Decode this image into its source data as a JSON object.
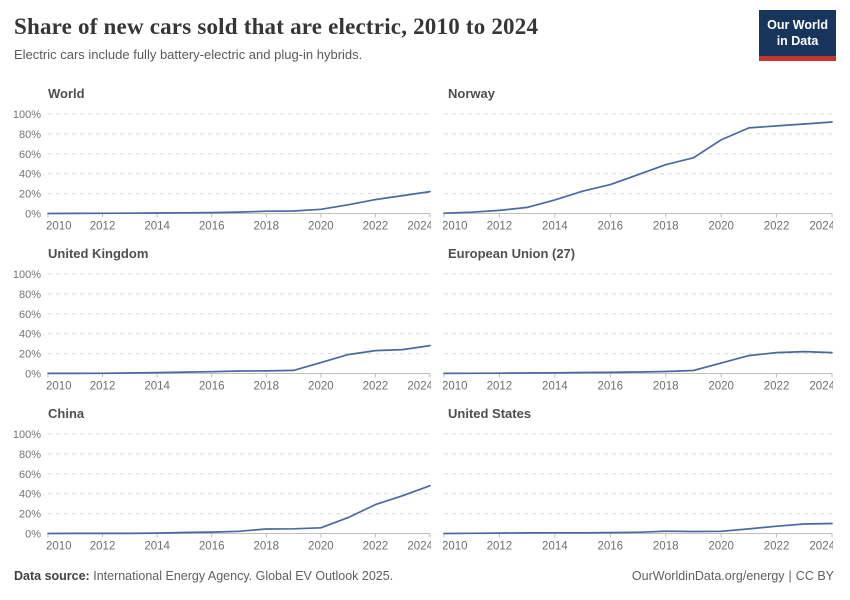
{
  "header": {
    "title": "Share of new cars sold that are electric, 2010 to 2024",
    "subtitle": "Electric cars include fully battery-electric and plug-in hybrids.",
    "logo": {
      "line1": "Our World",
      "line2": "in Data"
    }
  },
  "colors": {
    "line": "#4a699f",
    "grid": "#dcdcdc",
    "axis": "#bfbfbf",
    "logo_bg": "#18365d",
    "logo_accent": "#bf3730"
  },
  "chart_data": [
    {
      "type": "line",
      "title": "World",
      "x": [
        2010,
        2011,
        2012,
        2013,
        2014,
        2015,
        2016,
        2017,
        2018,
        2019,
        2020,
        2021,
        2022,
        2023,
        2024
      ],
      "values": [
        0.01,
        0.1,
        0.2,
        0.3,
        0.5,
        0.7,
        0.9,
        1.4,
        2.3,
        2.5,
        4.2,
        8.7,
        14,
        18,
        22
      ],
      "ylim": [
        0,
        100
      ],
      "yticks": [
        0,
        20,
        40,
        60,
        80,
        100
      ],
      "xticks": [
        2010,
        2012,
        2014,
        2016,
        2018,
        2020,
        2022,
        2024
      ],
      "show_y_labels": true,
      "grid": "dashed",
      "xlabel": "",
      "ylabel": ""
    },
    {
      "type": "line",
      "title": "Norway",
      "x": [
        2010,
        2011,
        2012,
        2013,
        2014,
        2015,
        2016,
        2017,
        2018,
        2019,
        2020,
        2021,
        2022,
        2023,
        2024
      ],
      "values": [
        0.3,
        1.3,
        3.1,
        6.1,
        13.7,
        22.4,
        29,
        39,
        49,
        56,
        74,
        86,
        88,
        90,
        92
      ],
      "ylim": [
        0,
        100
      ],
      "yticks": [
        0,
        20,
        40,
        60,
        80,
        100
      ],
      "xticks": [
        2010,
        2012,
        2014,
        2016,
        2018,
        2020,
        2022,
        2024
      ],
      "show_y_labels": false,
      "grid": "dashed",
      "xlabel": "",
      "ylabel": ""
    },
    {
      "type": "line",
      "title": "United Kingdom",
      "x": [
        2010,
        2011,
        2012,
        2013,
        2014,
        2015,
        2016,
        2017,
        2018,
        2019,
        2020,
        2021,
        2022,
        2023,
        2024
      ],
      "values": [
        0.1,
        0.1,
        0.2,
        0.5,
        0.9,
        1.4,
        1.8,
        2.5,
        2.6,
        3.1,
        11,
        19,
        23,
        24,
        28
      ],
      "ylim": [
        0,
        100
      ],
      "yticks": [
        0,
        20,
        40,
        60,
        80,
        100
      ],
      "xticks": [
        2010,
        2012,
        2014,
        2016,
        2018,
        2020,
        2022,
        2024
      ],
      "show_y_labels": true,
      "grid": "dashed",
      "xlabel": "",
      "ylabel": ""
    },
    {
      "type": "line",
      "title": "European Union (27)",
      "x": [
        2010,
        2011,
        2012,
        2013,
        2014,
        2015,
        2016,
        2017,
        2018,
        2019,
        2020,
        2021,
        2022,
        2023,
        2024
      ],
      "values": [
        0.1,
        0.2,
        0.3,
        0.5,
        0.6,
        1.0,
        1.1,
        1.5,
        2.0,
        3.0,
        10.5,
        18,
        21,
        22,
        21
      ],
      "ylim": [
        0,
        100
      ],
      "yticks": [
        0,
        20,
        40,
        60,
        80,
        100
      ],
      "xticks": [
        2010,
        2012,
        2014,
        2016,
        2018,
        2020,
        2022,
        2024
      ],
      "show_y_labels": false,
      "grid": "dashed",
      "xlabel": "",
      "ylabel": ""
    },
    {
      "type": "line",
      "title": "China",
      "x": [
        2010,
        2011,
        2012,
        2013,
        2014,
        2015,
        2016,
        2017,
        2018,
        2019,
        2020,
        2021,
        2022,
        2023,
        2024
      ],
      "values": [
        0.0,
        0.1,
        0.1,
        0.1,
        0.4,
        1.0,
        1.4,
        2.2,
        4.5,
        4.7,
        5.7,
        16,
        29,
        38,
        48
      ],
      "ylim": [
        0,
        100
      ],
      "yticks": [
        0,
        20,
        40,
        60,
        80,
        100
      ],
      "xticks": [
        2010,
        2012,
        2014,
        2016,
        2018,
        2020,
        2022,
        2024
      ],
      "show_y_labels": true,
      "grid": "dashed",
      "xlabel": "",
      "ylabel": ""
    },
    {
      "type": "line",
      "title": "United States",
      "x": [
        2010,
        2011,
        2012,
        2013,
        2014,
        2015,
        2016,
        2017,
        2018,
        2019,
        2020,
        2021,
        2022,
        2023,
        2024
      ],
      "values": [
        0.0,
        0.2,
        0.4,
        0.6,
        0.7,
        0.7,
        0.9,
        1.2,
        2.3,
        2.0,
        2.2,
        4.6,
        7.3,
        9.5,
        10
      ],
      "ylim": [
        0,
        100
      ],
      "yticks": [
        0,
        20,
        40,
        60,
        80,
        100
      ],
      "xticks": [
        2010,
        2012,
        2014,
        2016,
        2018,
        2020,
        2022,
        2024
      ],
      "show_y_labels": false,
      "grid": "dashed",
      "xlabel": "",
      "ylabel": ""
    }
  ],
  "footer": {
    "source_label": "Data source:",
    "source_text": "International Energy Agency. Global EV Outlook 2025.",
    "link": "OurWorldinData.org/energy",
    "separator": "|",
    "license": "CC BY"
  }
}
